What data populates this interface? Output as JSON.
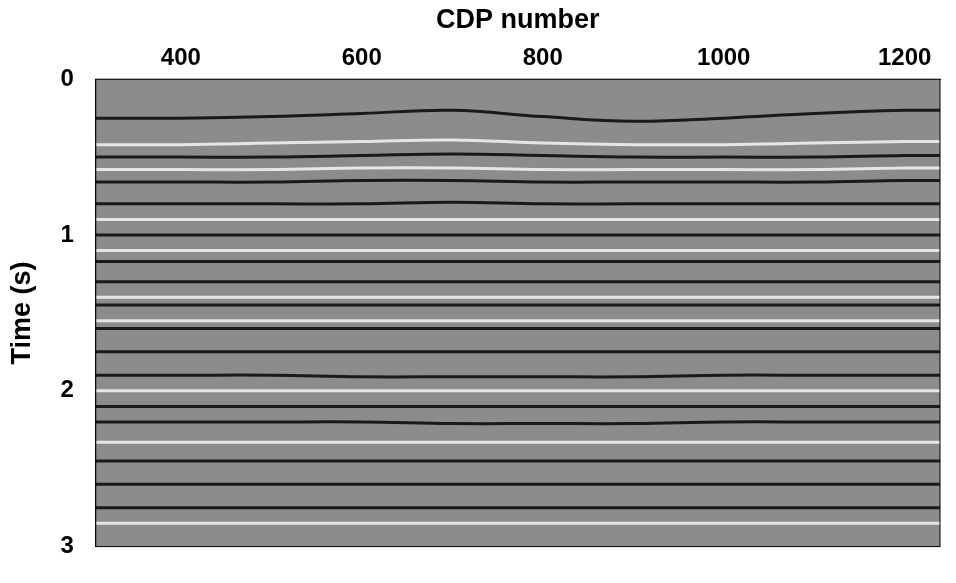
{
  "chart_data": {
    "type": "line",
    "x_label": "CDP number",
    "y_label": "Time (s)",
    "xlim": [
      306,
      1239
    ],
    "xticks": [
      400,
      600,
      800,
      1000,
      1200
    ],
    "ylim": [
      3,
      0
    ],
    "yticks": [
      0,
      1,
      2,
      3
    ],
    "grid": false,
    "x": [
      306,
      400,
      500,
      600,
      700,
      800,
      900,
      1000,
      1100,
      1200,
      1239
    ],
    "series": [
      {
        "color": "#1a1a1a",
        "values": [
          0.25,
          0.25,
          0.24,
          0.22,
          0.2,
          0.24,
          0.27,
          0.25,
          0.22,
          0.2,
          0.2
        ]
      },
      {
        "color": "#e6e6e6",
        "values": [
          0.42,
          0.42,
          0.41,
          0.4,
          0.39,
          0.41,
          0.42,
          0.42,
          0.41,
          0.4,
          0.4
        ]
      },
      {
        "color": "#1a1a1a",
        "values": [
          0.5,
          0.5,
          0.5,
          0.49,
          0.48,
          0.49,
          0.5,
          0.5,
          0.5,
          0.49,
          0.49
        ]
      },
      {
        "color": "#e6e6e6",
        "values": [
          0.58,
          0.58,
          0.58,
          0.57,
          0.57,
          0.58,
          0.58,
          0.58,
          0.58,
          0.57,
          0.57
        ]
      },
      {
        "color": "#1a1a1a",
        "values": [
          0.66,
          0.66,
          0.66,
          0.65,
          0.65,
          0.66,
          0.66,
          0.66,
          0.66,
          0.65,
          0.65
        ]
      },
      {
        "color": "#1a1a1a",
        "values": [
          0.8,
          0.8,
          0.8,
          0.8,
          0.79,
          0.8,
          0.8,
          0.8,
          0.8,
          0.8,
          0.8
        ]
      },
      {
        "color": "#e6e6e6",
        "values": [
          0.9,
          0.9,
          0.9,
          0.9,
          0.9,
          0.9,
          0.9,
          0.9,
          0.9,
          0.9,
          0.9
        ]
      },
      {
        "color": "#1a1a1a",
        "values": [
          1.0,
          1.0,
          1.0,
          1.0,
          1.0,
          1.0,
          1.0,
          1.0,
          1.0,
          1.0,
          1.0
        ]
      },
      {
        "color": "#e6e6e6",
        "values": [
          1.1,
          1.1,
          1.1,
          1.1,
          1.1,
          1.1,
          1.1,
          1.1,
          1.1,
          1.1,
          1.1
        ]
      },
      {
        "color": "#1a1a1a",
        "values": [
          1.17,
          1.17,
          1.17,
          1.17,
          1.17,
          1.17,
          1.17,
          1.17,
          1.17,
          1.17,
          1.17
        ]
      },
      {
        "color": "#1a1a1a",
        "values": [
          1.3,
          1.3,
          1.3,
          1.3,
          1.3,
          1.3,
          1.3,
          1.3,
          1.3,
          1.3,
          1.3
        ]
      },
      {
        "color": "#e6e6e6",
        "values": [
          1.4,
          1.4,
          1.4,
          1.4,
          1.4,
          1.4,
          1.4,
          1.4,
          1.4,
          1.4,
          1.4
        ]
      },
      {
        "color": "#1a1a1a",
        "values": [
          1.45,
          1.45,
          1.45,
          1.45,
          1.45,
          1.45,
          1.45,
          1.45,
          1.45,
          1.45,
          1.45
        ]
      },
      {
        "color": "#e6e6e6",
        "values": [
          1.55,
          1.55,
          1.55,
          1.55,
          1.55,
          1.55,
          1.55,
          1.55,
          1.55,
          1.55,
          1.55
        ]
      },
      {
        "color": "#1a1a1a",
        "values": [
          1.6,
          1.6,
          1.6,
          1.6,
          1.6,
          1.6,
          1.6,
          1.6,
          1.6,
          1.6,
          1.6
        ]
      },
      {
        "color": "#1a1a1a",
        "values": [
          1.75,
          1.75,
          1.75,
          1.75,
          1.75,
          1.75,
          1.75,
          1.75,
          1.75,
          1.75,
          1.75
        ]
      },
      {
        "color": "#1a1a1a",
        "values": [
          1.9,
          1.9,
          1.9,
          1.91,
          1.91,
          1.91,
          1.91,
          1.9,
          1.9,
          1.9,
          1.9
        ]
      },
      {
        "color": "#e6e6e6",
        "values": [
          2.0,
          2.0,
          2.0,
          2.0,
          2.0,
          2.0,
          2.0,
          2.0,
          2.0,
          2.0,
          2.0
        ]
      },
      {
        "color": "#1a1a1a",
        "values": [
          2.1,
          2.1,
          2.1,
          2.1,
          2.1,
          2.1,
          2.1,
          2.1,
          2.1,
          2.1,
          2.1
        ]
      },
      {
        "color": "#1a1a1a",
        "values": [
          2.2,
          2.2,
          2.2,
          2.2,
          2.21,
          2.21,
          2.21,
          2.2,
          2.2,
          2.2,
          2.2
        ]
      },
      {
        "color": "#e6e6e6",
        "values": [
          2.33,
          2.33,
          2.33,
          2.33,
          2.33,
          2.33,
          2.33,
          2.33,
          2.33,
          2.33,
          2.33
        ]
      },
      {
        "color": "#1a1a1a",
        "values": [
          2.45,
          2.45,
          2.45,
          2.45,
          2.45,
          2.45,
          2.45,
          2.45,
          2.45,
          2.45,
          2.45
        ]
      },
      {
        "color": "#1a1a1a",
        "values": [
          2.6,
          2.6,
          2.6,
          2.6,
          2.6,
          2.6,
          2.6,
          2.6,
          2.6,
          2.6,
          2.6
        ]
      },
      {
        "color": "#1a1a1a",
        "values": [
          2.75,
          2.75,
          2.75,
          2.75,
          2.75,
          2.75,
          2.75,
          2.75,
          2.75,
          2.75,
          2.75
        ]
      },
      {
        "color": "#e6e6e6",
        "values": [
          2.85,
          2.85,
          2.85,
          2.85,
          2.85,
          2.85,
          2.85,
          2.85,
          2.85,
          2.85,
          2.85
        ]
      }
    ]
  }
}
